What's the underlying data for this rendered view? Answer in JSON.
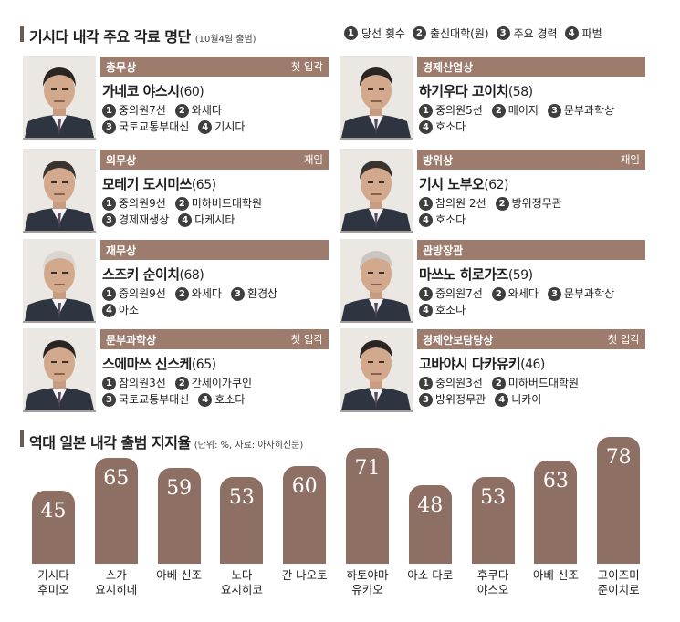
{
  "header": {
    "title": "기시다 내각 주요 각료 명단",
    "subtitle": "(10월4일 출범)",
    "legend": [
      {
        "n": "1",
        "label": "당선 횟수"
      },
      {
        "n": "2",
        "label": "출신대학(원)"
      },
      {
        "n": "3",
        "label": "주요 경력"
      },
      {
        "n": "4",
        "label": "파벌"
      }
    ]
  },
  "ministers": [
    {
      "role": "총무상",
      "tag": "첫 입각",
      "name": "가네코 야스시",
      "age": "(60)",
      "line1": [
        [
          "1",
          "중의원7선"
        ],
        [
          "2",
          "와세다"
        ]
      ],
      "line2": [
        [
          "3",
          "국토교통부대신"
        ],
        [
          "4",
          "기시다"
        ]
      ]
    },
    {
      "role": "외무상",
      "tag": "재임",
      "name": "모테기 도시미쓰",
      "age": "(65)",
      "line1": [
        [
          "1",
          "중의원9선"
        ],
        [
          "2",
          "미하버드대학원"
        ]
      ],
      "line2": [
        [
          "3",
          "경제재생상"
        ],
        [
          "4",
          "다케시타"
        ]
      ]
    },
    {
      "role": "재무상",
      "tag": "",
      "name": "스즈키 순이치",
      "age": "(68)",
      "line1": [
        [
          "1",
          "중의원9선"
        ],
        [
          "2",
          "와세다"
        ],
        [
          "3",
          "환경상"
        ]
      ],
      "line2": [
        [
          "4",
          "아소"
        ]
      ]
    },
    {
      "role": "문부과학상",
      "tag": "첫 입각",
      "name": "스에마쓰 신스케",
      "age": "(65)",
      "line1": [
        [
          "1",
          "참의원3선"
        ],
        [
          "2",
          "간세이가쿠인"
        ]
      ],
      "line2": [
        [
          "3",
          "국토교통부대신"
        ],
        [
          "4",
          "호소다"
        ]
      ]
    },
    {
      "role": "경제산업상",
      "tag": "",
      "name": "하기우다 고이치",
      "age": "(58)",
      "line1": [
        [
          "1",
          "중의원5선"
        ],
        [
          "2",
          "메이지"
        ],
        [
          "3",
          "문부과학상"
        ]
      ],
      "line2": [
        [
          "4",
          "호소다"
        ]
      ]
    },
    {
      "role": "방위상",
      "tag": "재임",
      "name": "기시 노부오",
      "age": "(62)",
      "line1": [
        [
          "1",
          "참의원 2선"
        ],
        [
          "2",
          "방위정무관"
        ]
      ],
      "line2": [
        [
          "4",
          "호소다"
        ]
      ]
    },
    {
      "role": "관방장관",
      "tag": "",
      "name": "마쓰노 히로가즈",
      "age": "(59)",
      "line1": [
        [
          "1",
          "중의원7선"
        ],
        [
          "2",
          "와세다"
        ],
        [
          "3",
          "문부과학상"
        ]
      ],
      "line2": [
        [
          "4",
          "호소다"
        ]
      ]
    },
    {
      "role": "경제안보담당상",
      "tag": "첫 입각",
      "name": "고바야시 다카유키",
      "age": "(46)",
      "line1": [
        [
          "1",
          "중의원3선"
        ],
        [
          "2",
          "미하버드대학원"
        ]
      ],
      "line2": [
        [
          "3",
          "방위정무관"
        ],
        [
          "4",
          "니카이"
        ]
      ]
    }
  ],
  "chart_title": "역대 일본 내각 출범 지지율",
  "chart_sub": "(단위: %, 자료: 아사히신문)",
  "chart_data": {
    "type": "bar",
    "title": "역대 일본 내각 출범 지지율",
    "unit": "%",
    "source": "아사히신문",
    "categories": [
      [
        "기시다",
        "후미오"
      ],
      [
        "스가",
        "요시히데"
      ],
      [
        "아베 신조",
        ""
      ],
      [
        "노다",
        "요시히코"
      ],
      [
        "간 나오토",
        ""
      ],
      [
        "하토야마",
        "유키오"
      ],
      [
        "아소 다로",
        ""
      ],
      [
        "후쿠다",
        "야스오"
      ],
      [
        "아베 신조",
        ""
      ],
      [
        "고이즈미",
        "준이치로"
      ]
    ],
    "values": [
      45,
      65,
      59,
      53,
      60,
      71,
      48,
      53,
      63,
      78
    ],
    "ylim": [
      0,
      80
    ]
  },
  "colors": {
    "band": "#9d7c6e",
    "bar": "#8d6f63",
    "accent": "#6b5a52"
  }
}
